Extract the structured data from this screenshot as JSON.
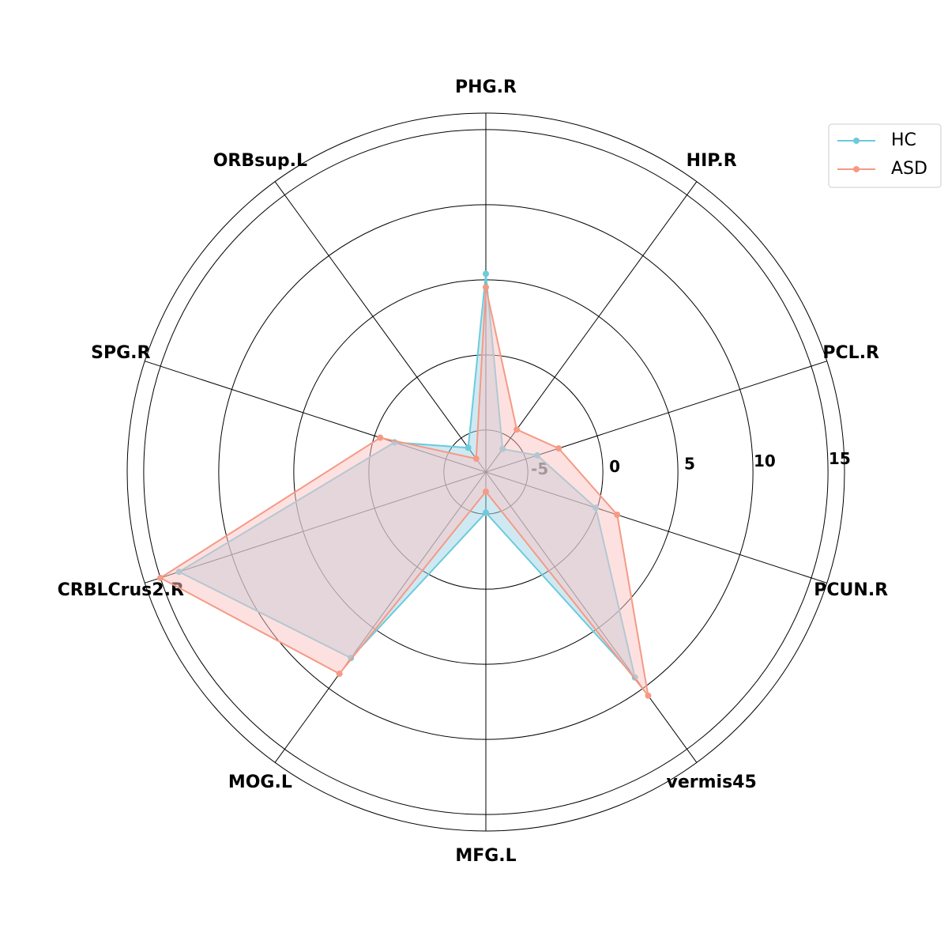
{
  "chart_data": {
    "type": "radar",
    "categories": [
      "PHG.R",
      "HIP.R",
      "PCL.R",
      "PCUN.R",
      "vermis45",
      "MFG.L",
      "MOG.L",
      "CRBLCrus2.R",
      "SPG.R",
      "ORBsup.L"
    ],
    "series": [
      {
        "name": "HC",
        "color": "#6ccbdc",
        "values": [
          5.4,
          -5.9,
          -4.2,
          -0.1,
          9.1,
          -5.1,
          7.5,
          13.7,
          -1.4,
          -5.8
        ]
      },
      {
        "name": "ASD",
        "color": "#f59a85",
        "values": [
          4.5,
          -4.3,
          -2.7,
          1.4,
          10.6,
          -6.5,
          8.8,
          15.0,
          -0.4,
          -6.7
        ]
      }
    ],
    "fill_colors": [
      "#9fd3e6",
      "#fcc4c4"
    ],
    "ylim": [
      -7.8,
      16.1
    ],
    "yticks": [
      -5,
      0,
      5,
      10,
      15
    ],
    "grid": true,
    "legend": "upper right"
  }
}
